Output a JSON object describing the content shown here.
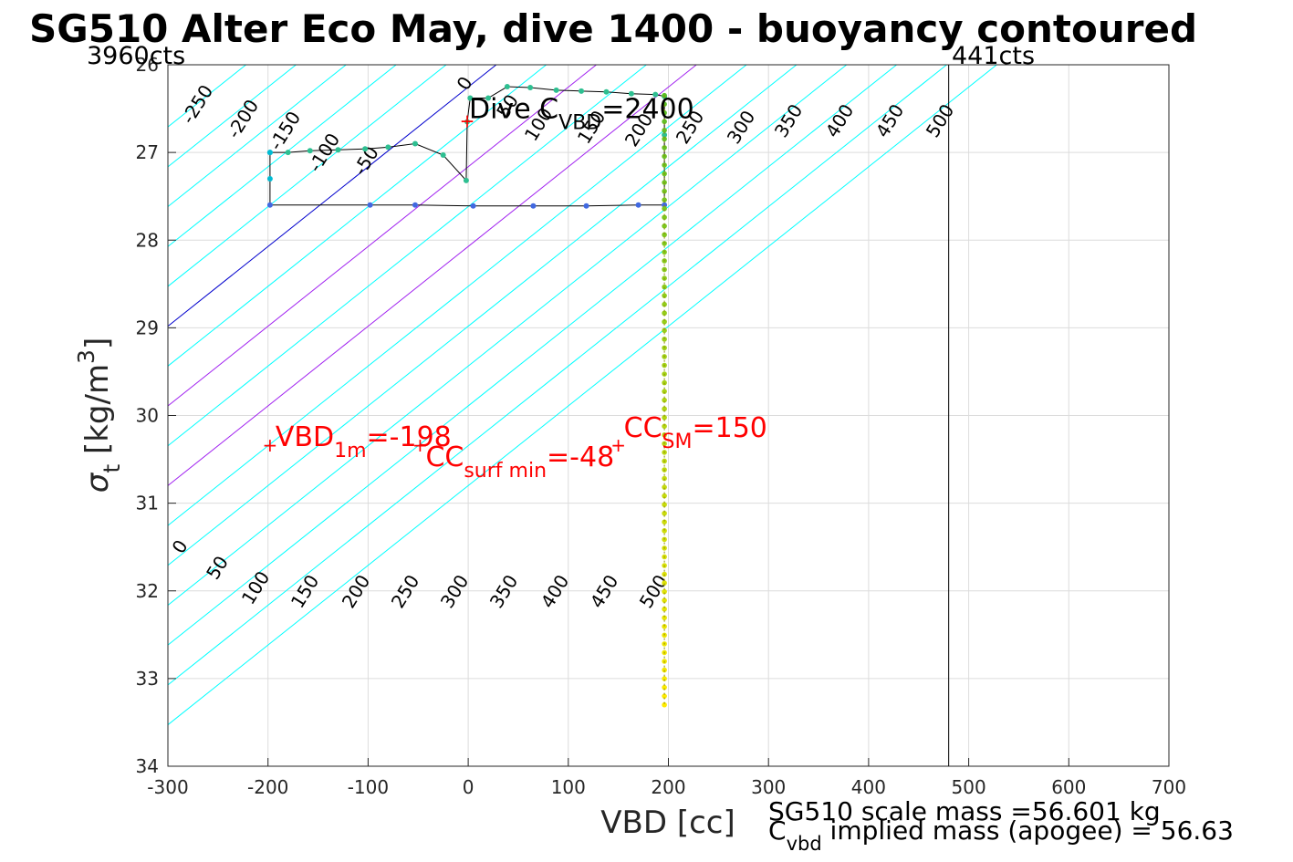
{
  "chart_data": {
    "type": "line",
    "title": "SG510 Alter Eco May, dive 1400 - buoyancy contoured",
    "xlabel": "VBD [cc]",
    "ylabel_main": "σ",
    "ylabel_sub": "t",
    "ylabel_unit_pre": " [kg/m",
    "ylabel_unit_sup": "3",
    "ylabel_unit_post": "]",
    "xlim": [
      -300,
      700
    ],
    "ylim": [
      26,
      34
    ],
    "y_reversed": true,
    "grid": true,
    "x_ticks": [
      -300,
      -200,
      -100,
      0,
      100,
      200,
      300,
      400,
      500,
      600,
      700
    ],
    "y_ticks": [
      26,
      27,
      28,
      29,
      30,
      31,
      32,
      33,
      34
    ],
    "top_left_label": "3960cts",
    "top_right_label": "441cts",
    "cts_vline_x": 480,
    "contours": {
      "buoyancy_levels": [
        -250,
        -200,
        -150,
        -100,
        -50,
        0,
        50,
        100,
        150,
        200,
        250,
        300,
        350,
        400,
        450,
        500
      ],
      "color_default": "#00ffff",
      "color_zero": "#0000cd",
      "color_highlight": "#a020f0",
      "highlight_levels": [
        100,
        200
      ],
      "top_labels": [
        "-250",
        "-200",
        "-150",
        "-100",
        "-50",
        "0",
        "50",
        "100",
        "150",
        "200",
        "250",
        "300",
        "350",
        "400",
        "450",
        "500"
      ],
      "bottom_labels": [
        "0",
        "50",
        "100",
        "150",
        "200",
        "250",
        "300",
        "350",
        "400",
        "450",
        "500"
      ]
    },
    "series": [
      {
        "color": "#000000",
        "points": [
          [
            -198,
            27.0
          ],
          [
            -180,
            27.0
          ],
          [
            -158,
            26.98
          ],
          [
            -130,
            26.97
          ],
          [
            -103,
            26.96
          ],
          [
            -80,
            26.94
          ],
          [
            -53,
            26.9
          ],
          [
            -25,
            27.03
          ],
          [
            -2,
            27.32
          ],
          [
            -1,
            26.65
          ],
          [
            2,
            26.38
          ],
          [
            20,
            26.38
          ],
          [
            39,
            26.25
          ],
          [
            62,
            26.26
          ],
          [
            88,
            26.29
          ],
          [
            113,
            26.3
          ],
          [
            138,
            26.31
          ],
          [
            163,
            26.33
          ],
          [
            187,
            26.34
          ],
          [
            196,
            26.36
          ],
          [
            196,
            26.8
          ],
          [
            196,
            27.6
          ],
          [
            170,
            27.6
          ],
          [
            118,
            27.61
          ],
          [
            65,
            27.61
          ],
          [
            5,
            27.61
          ],
          [
            -53,
            27.6
          ],
          [
            -98,
            27.6
          ],
          [
            -198,
            27.6
          ],
          [
            -198,
            27.3
          ],
          [
            -198,
            27.0
          ]
        ]
      },
      {
        "color_top": "#5b8a00",
        "color_bottom": "#ffff00",
        "x": 196,
        "y_range": [
          26.35,
          33.3
        ]
      }
    ],
    "markers": [
      {
        "label_main": "Dive C",
        "label_sub": "VBD",
        "label_post": "=2400",
        "x": -1,
        "y": 26.65,
        "color": "#000000"
      },
      {
        "label_main": "VBD",
        "label_sub": "1m",
        "label_post": "=-198",
        "x": -198,
        "y": 30.35,
        "color": "#ff0000"
      },
      {
        "label_main": "CC",
        "label_sub": "surf min",
        "label_post": "=-48",
        "x": -48,
        "y": 30.35,
        "color": "#ff0000"
      },
      {
        "label_main": "CC",
        "label_sub": "SM",
        "label_post": "=150",
        "x": 150,
        "y": 30.35,
        "color": "#ff0000"
      }
    ],
    "footer_line1": "SG510 scale mass =56.601 kg",
    "footer_line2_main": "C",
    "footer_line2_sub": "vbd",
    "footer_line2_post": " implied mass (apogee) = 56.63"
  }
}
